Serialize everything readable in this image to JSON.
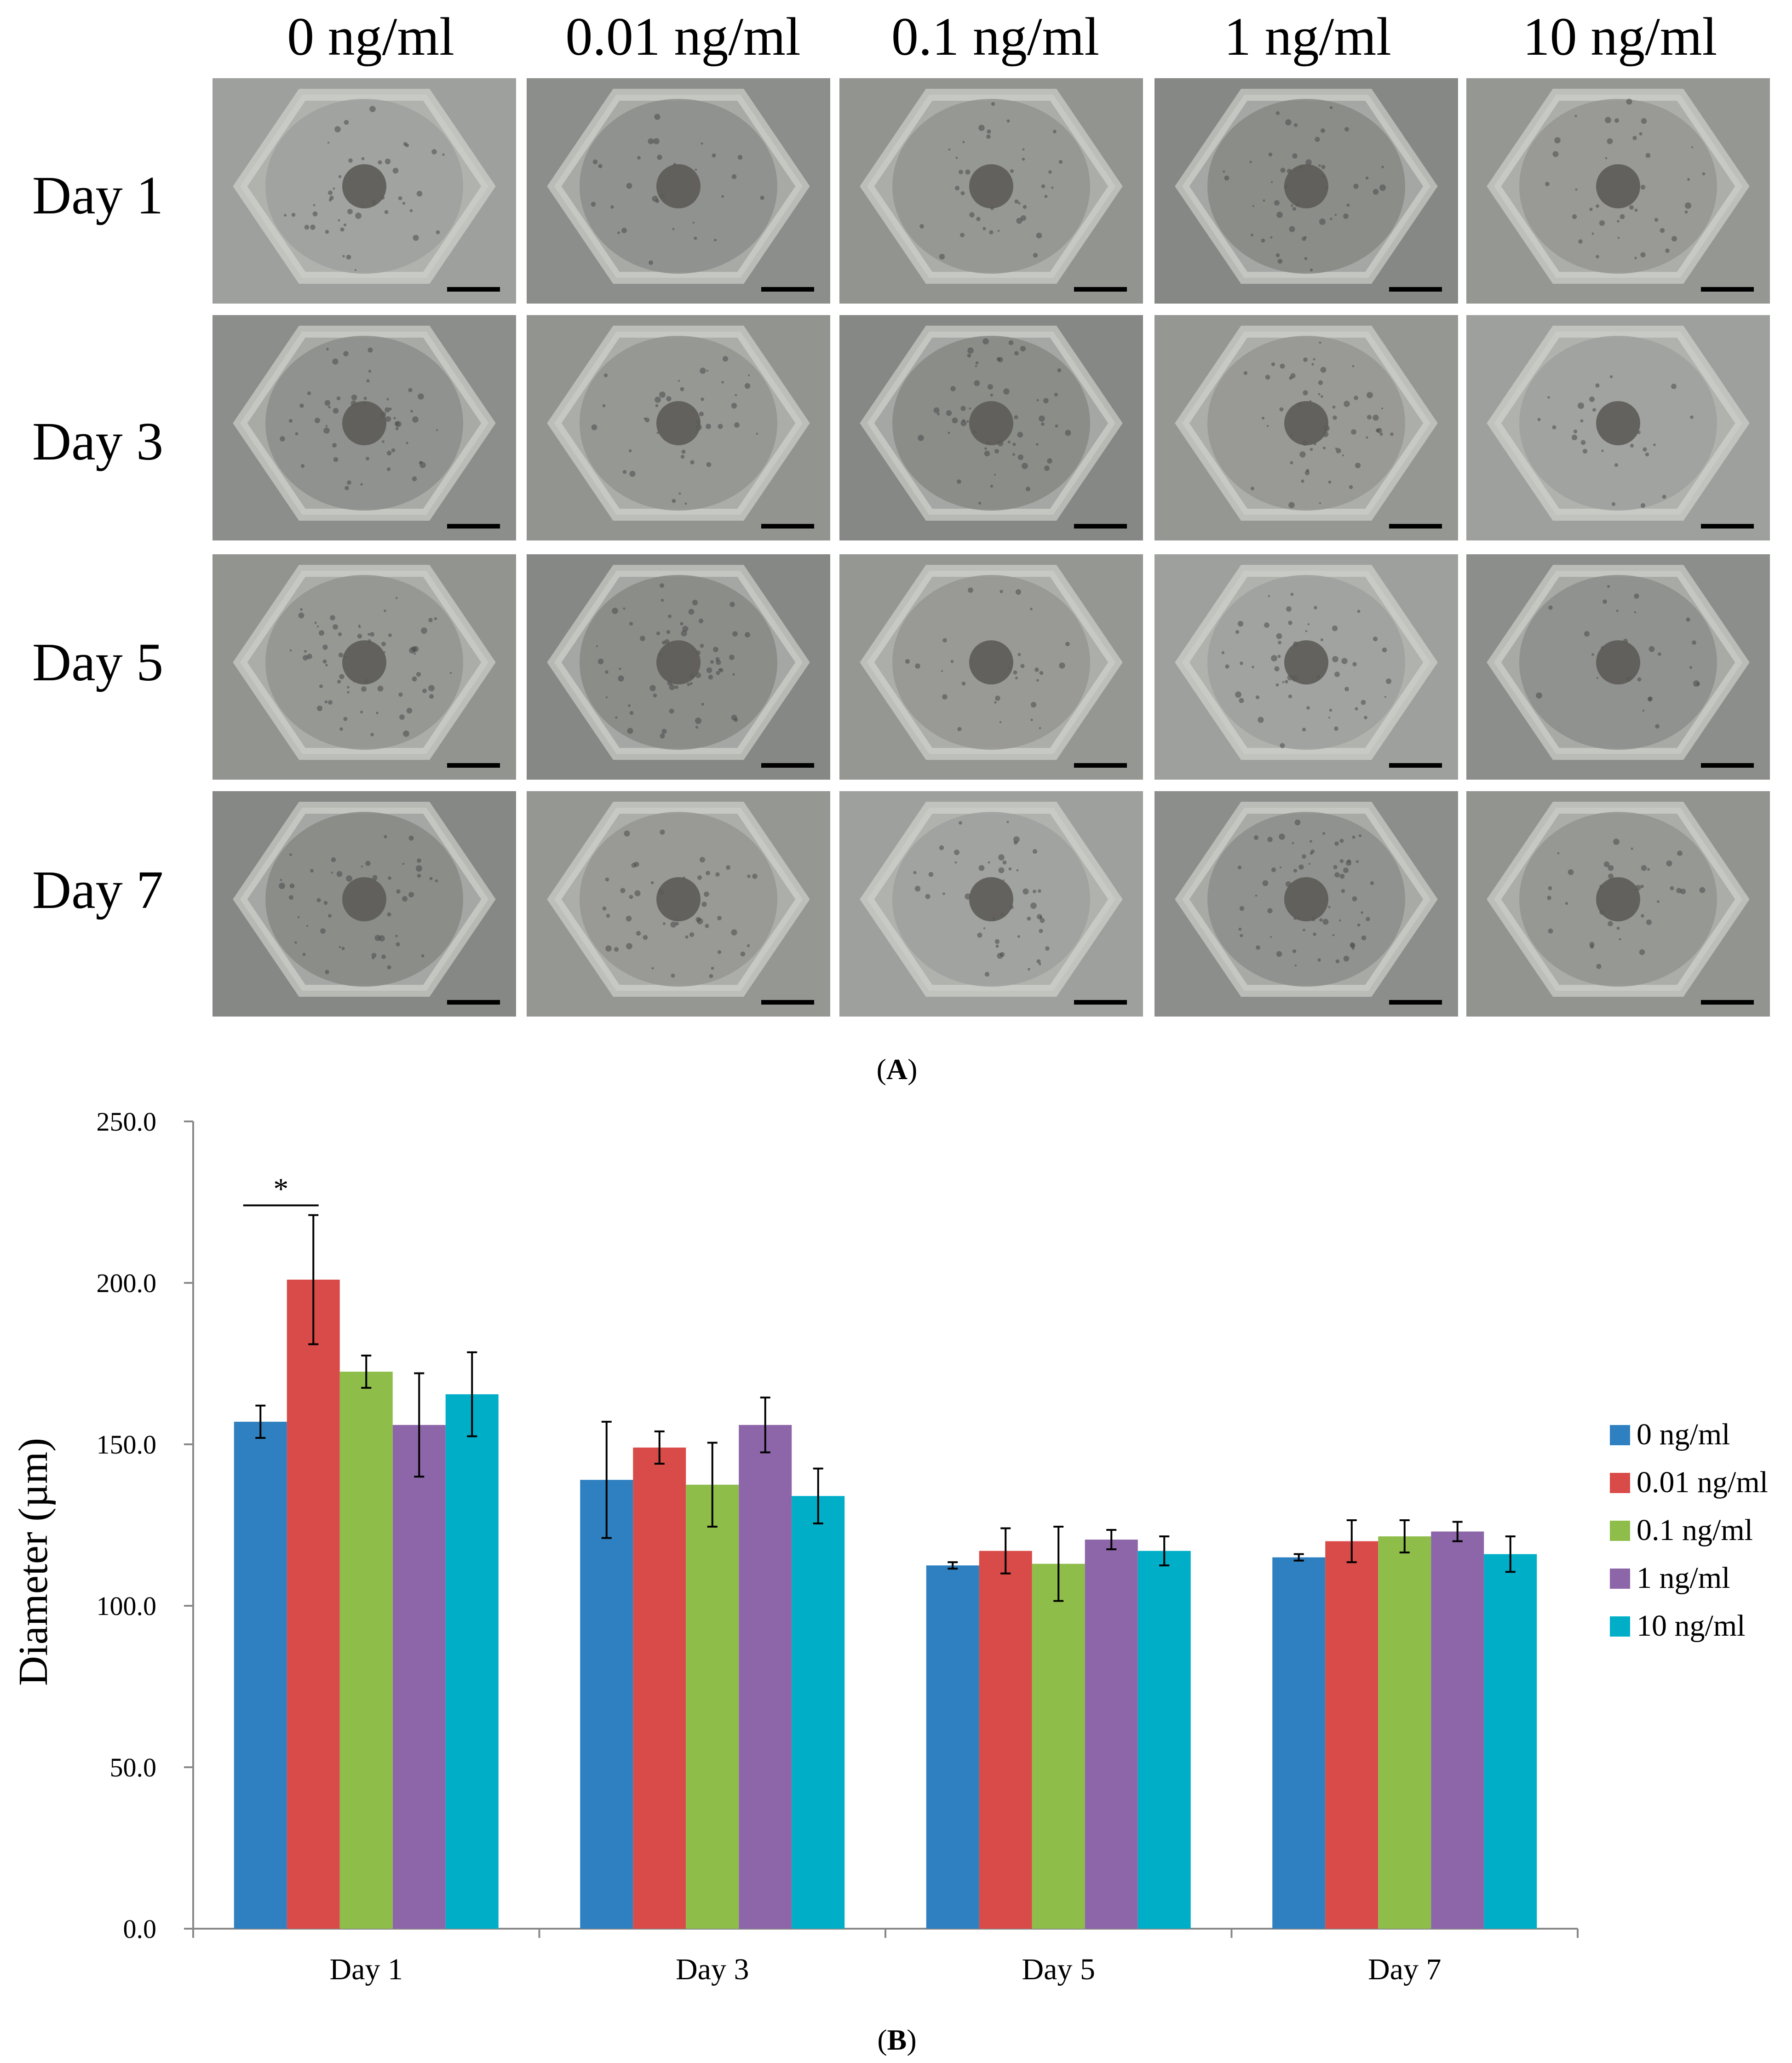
{
  "panel_a": {
    "letter": "A",
    "columns": [
      "0 ng/ml",
      "0.01 ng/ml",
      "0.1 ng/ml",
      "1 ng/ml",
      "10 ng/ml"
    ],
    "rows": [
      "Day 1",
      "Day 3",
      "Day 5",
      "Day 7"
    ]
  },
  "panel_b": {
    "letter": "B"
  },
  "chart_data": {
    "type": "bar",
    "title": "",
    "xlabel": "",
    "ylabel": "Diameter (µm)",
    "ylim": [
      0,
      250
    ],
    "yticks": [
      "0.0",
      "50.0",
      "100.0",
      "150.0",
      "200.0",
      "250.0"
    ],
    "ytick_values": [
      0,
      50,
      100,
      150,
      200,
      250
    ],
    "categories": [
      "Day 1",
      "Day 3",
      "Day 5",
      "Day 7"
    ],
    "legend_position": "right",
    "series": [
      {
        "name": "0 ng/ml",
        "color": "#2e80c0",
        "values": [
          157,
          139,
          112.5,
          115
        ],
        "errors": [
          5,
          18,
          1,
          1
        ]
      },
      {
        "name": "0.01 ng/ml",
        "color": "#d84b48",
        "values": [
          201,
          149,
          117,
          120
        ],
        "errors": [
          20,
          5,
          7,
          6.5
        ]
      },
      {
        "name": "0.1 ng/ml",
        "color": "#8ebd4a",
        "values": [
          172.5,
          137.5,
          113,
          121.5
        ],
        "errors": [
          5,
          13,
          11.5,
          5
        ]
      },
      {
        "name": "1 ng/ml",
        "color": "#8c66a8",
        "values": [
          156,
          156,
          120.5,
          123
        ],
        "errors": [
          16,
          8.5,
          3,
          3
        ]
      },
      {
        "name": "10 ng/ml",
        "color": "#00aec8",
        "values": [
          165.5,
          134,
          117,
          116
        ],
        "errors": [
          13,
          8.5,
          4.5,
          5.5
        ]
      }
    ],
    "annotations": [
      {
        "text": "*",
        "category": "Day 1",
        "between": [
          "0 ng/ml",
          "0.01 ng/ml"
        ]
      }
    ]
  }
}
